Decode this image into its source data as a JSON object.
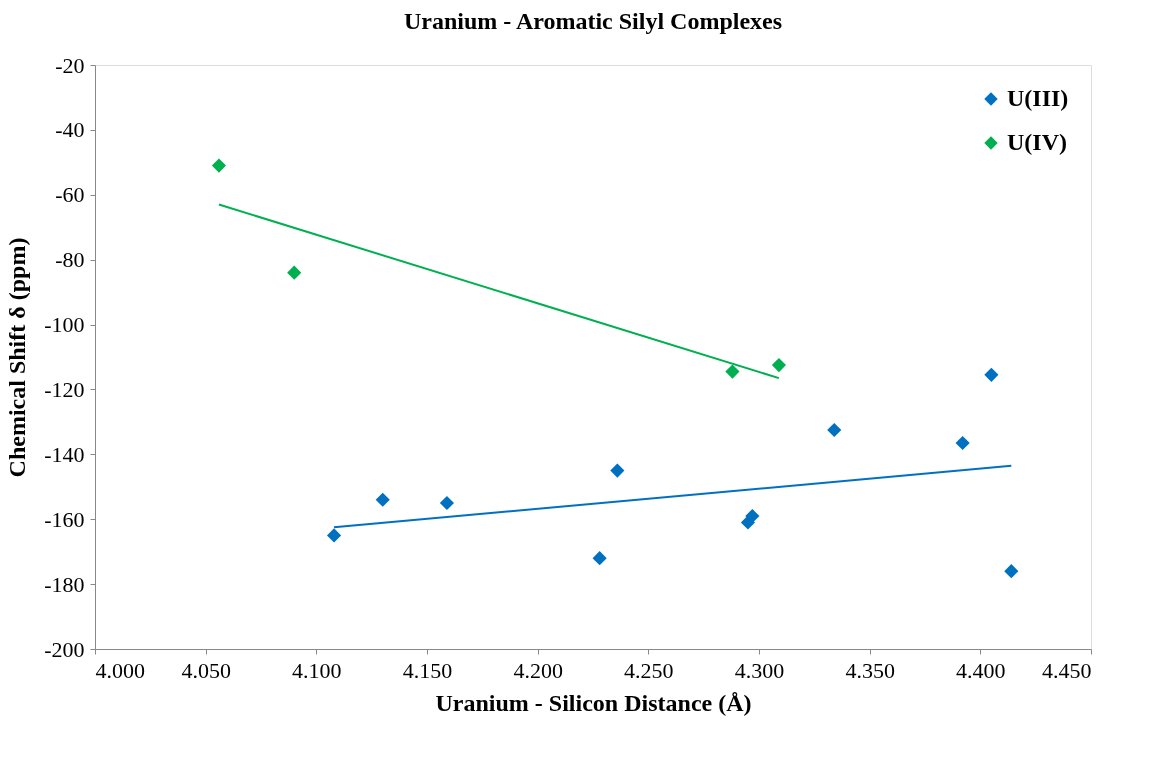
{
  "chart_data": {
    "type": "scatter",
    "title": "Uranium - Aromatic Silyl Complexes",
    "xlabel": "Uranium - Silicon Distance (Å)",
    "ylabel": "Chemical Shift δ (ppm)",
    "xlim": [
      4.0,
      4.45
    ],
    "ylim": [
      -200,
      -20
    ],
    "xticks": [
      {
        "value": 4.0,
        "label": "4.000"
      },
      {
        "value": 4.05,
        "label": "4.050"
      },
      {
        "value": 4.1,
        "label": "4.100"
      },
      {
        "value": 4.15,
        "label": "4.150"
      },
      {
        "value": 4.2,
        "label": "4.200"
      },
      {
        "value": 4.25,
        "label": "4.250"
      },
      {
        "value": 4.3,
        "label": "4.300"
      },
      {
        "value": 4.35,
        "label": "4.350"
      },
      {
        "value": 4.4,
        "label": "4.400"
      },
      {
        "value": 4.45,
        "label": "4.450"
      }
    ],
    "yticks": [
      -200,
      -180,
      -160,
      -140,
      -120,
      -100,
      -80,
      -60,
      -40,
      -20
    ],
    "grid": false,
    "legend": "top right",
    "marker": "diamond",
    "series": [
      {
        "name": "U(III)",
        "color": "#0070c0",
        "x": [
          4.108,
          4.13,
          4.159,
          4.228,
          4.236,
          4.295,
          4.297,
          4.334,
          4.392,
          4.405,
          4.414
        ],
        "values": [
          -165,
          -154,
          -155,
          -172,
          -145,
          -161,
          -159,
          -132.5,
          -136.5,
          -115.5,
          -176
        ]
      },
      {
        "name": "U(IV)",
        "color": "#00b050",
        "x": [
          4.056,
          4.09,
          4.288,
          4.309
        ],
        "values": [
          -51,
          -84,
          -114.5,
          -112.5
        ]
      },
      {
        "type": "line",
        "color": "#0070c0",
        "marker": "none",
        "line_style": "solid",
        "x": [
          4.108,
          4.414
        ],
        "values": [
          -162.5,
          -143.5
        ]
      },
      {
        "type": "line",
        "color": "#00b050",
        "marker": "none",
        "line_style": "solid",
        "x": [
          4.056,
          4.309
        ],
        "values": [
          -63,
          -116.5
        ]
      }
    ]
  }
}
